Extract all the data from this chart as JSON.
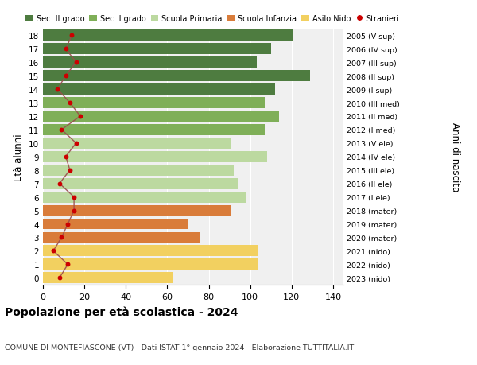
{
  "ages": [
    18,
    17,
    16,
    15,
    14,
    13,
    12,
    11,
    10,
    9,
    8,
    7,
    6,
    5,
    4,
    3,
    2,
    1,
    0
  ],
  "bar_values": [
    121,
    110,
    103,
    129,
    112,
    107,
    114,
    107,
    91,
    108,
    92,
    94,
    98,
    91,
    70,
    76,
    104,
    104,
    63
  ],
  "bar_colors": [
    "#4e7c40",
    "#4e7c40",
    "#4e7c40",
    "#4e7c40",
    "#4e7c40",
    "#7faf58",
    "#7faf58",
    "#7faf58",
    "#bcd9a0",
    "#bcd9a0",
    "#bcd9a0",
    "#bcd9a0",
    "#bcd9a0",
    "#d97c3a",
    "#d97c3a",
    "#d97c3a",
    "#f2d060",
    "#f2d060",
    "#f2d060"
  ],
  "stranieri_values": [
    14,
    11,
    16,
    11,
    7,
    13,
    18,
    9,
    16,
    11,
    13,
    8,
    15,
    15,
    12,
    9,
    5,
    12,
    8
  ],
  "right_labels": [
    "2005 (V sup)",
    "2006 (IV sup)",
    "2007 (III sup)",
    "2008 (II sup)",
    "2009 (I sup)",
    "2010 (III med)",
    "2011 (II med)",
    "2012 (I med)",
    "2013 (V ele)",
    "2014 (IV ele)",
    "2015 (III ele)",
    "2016 (II ele)",
    "2017 (I ele)",
    "2018 (mater)",
    "2019 (mater)",
    "2020 (mater)",
    "2021 (nido)",
    "2022 (nido)",
    "2023 (nido)"
  ],
  "legend_labels": [
    "Sec. II grado",
    "Sec. I grado",
    "Scuola Primaria",
    "Scuola Infanzia",
    "Asilo Nido",
    "Stranieri"
  ],
  "legend_colors": [
    "#4e7c40",
    "#7faf58",
    "#bcd9a0",
    "#d97c3a",
    "#f2d060",
    "#cc0000"
  ],
  "ylabel_left": "Età alunni",
  "ylabel_right": "Anni di nascita",
  "title": "Popolazione per età scolastica - 2024",
  "subtitle": "COMUNE DI MONTEFIASCONE (VT) - Dati ISTAT 1° gennaio 2024 - Elaborazione TUTTITALIA.IT",
  "xlim": [
    0,
    145
  ],
  "stranieri_color": "#cc0000",
  "line_color": "#9b4c4c",
  "bg_color": "#ffffff"
}
